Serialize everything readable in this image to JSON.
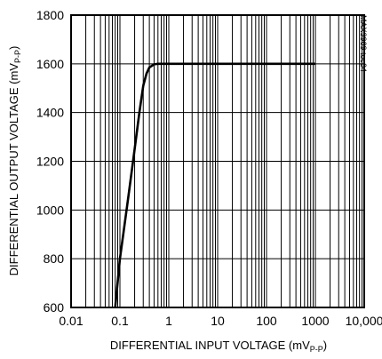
{
  "chart_data": {
    "type": "line",
    "title": "",
    "xlabel_main": "DIFFERENTIAL INPUT VOLTAGE (mV",
    "xlabel_sub": "P-P",
    "xlabel_end": ")",
    "ylabel_main": "DIFFERENTIAL OUTPUT VOLTAGE (mV",
    "ylabel_sub": "P-P",
    "ylabel_end": ")",
    "watermark": "MAX3969 toc04",
    "x_scale": "log",
    "xlim": [
      0.01,
      10000
    ],
    "ylim": [
      600,
      1800
    ],
    "x_ticks": [
      0.01,
      0.1,
      1,
      10,
      100,
      1000,
      10000
    ],
    "x_tick_labels": [
      "0.01",
      "0.1",
      "1",
      "10",
      "100",
      "1000",
      "10,000"
    ],
    "y_ticks": [
      600,
      800,
      1000,
      1200,
      1400,
      1600,
      1800
    ],
    "y_tick_labels": [
      "600",
      "800",
      "1000",
      "1200",
      "1400",
      "1600",
      "1800"
    ],
    "grid": true,
    "series": [
      {
        "x": [
          0.08,
          0.1,
          0.15,
          0.2,
          0.25,
          0.3,
          0.35,
          0.4,
          0.5,
          0.6,
          0.8,
          1,
          10,
          100,
          1000
        ],
        "y": [
          600,
          800,
          1060,
          1250,
          1400,
          1510,
          1560,
          1585,
          1598,
          1600,
          1600,
          1600,
          1600,
          1600,
          1600
        ]
      }
    ]
  }
}
